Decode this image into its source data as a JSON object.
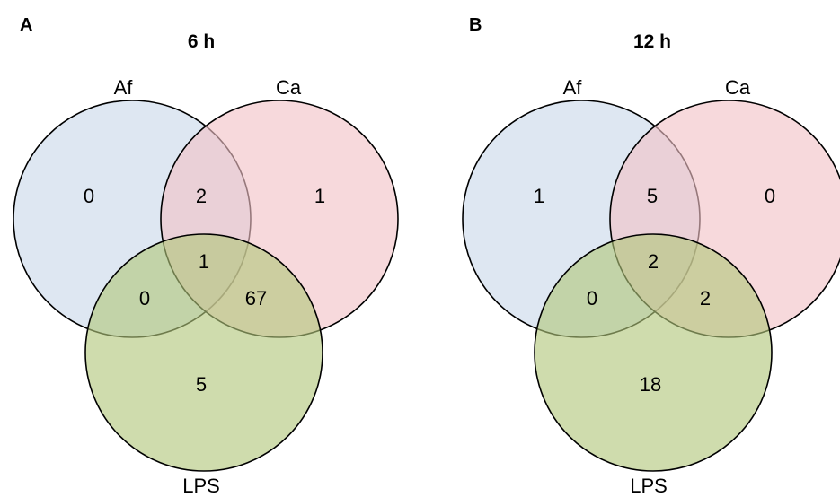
{
  "colors": {
    "af": "#c9d8ea",
    "ca": "#f2c2c6",
    "lps": "#b2c67a",
    "stroke": "#000000"
  },
  "panels": [
    {
      "letter": "A",
      "title": "6 h",
      "sets": {
        "af": "Af",
        "ca": "Ca",
        "lps": "LPS"
      },
      "counts": {
        "af_only": "0",
        "ca_only": "1",
        "lps_only": "5",
        "af_ca": "2",
        "af_lps": "0",
        "ca_lps": "67",
        "af_ca_lps": "1"
      }
    },
    {
      "letter": "B",
      "title": "12 h",
      "sets": {
        "af": "Af",
        "ca": "Ca",
        "lps": "LPS"
      },
      "counts": {
        "af_only": "1",
        "ca_only": "0",
        "lps_only": "18",
        "af_ca": "5",
        "af_lps": "0",
        "ca_lps": "2",
        "af_ca_lps": "2"
      }
    }
  ]
}
